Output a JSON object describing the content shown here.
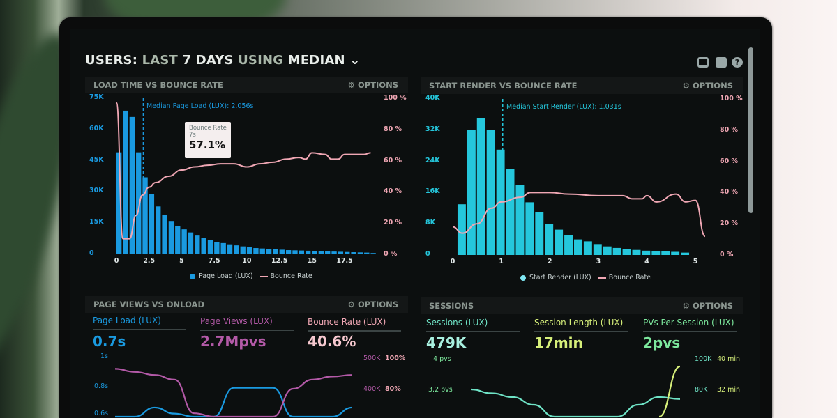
{
  "header": {
    "title_parts": [
      "USERS:",
      "LAST",
      "7 DAYS",
      "USING",
      "MEDIAN"
    ],
    "icons": [
      "monitor-icon",
      "share-icon",
      "help-icon"
    ]
  },
  "colors": {
    "page_load": "#1a9ae0",
    "start_render": "#25c7dc",
    "bounce": "#f0a7b4",
    "page_views": "#b45aa8",
    "sessions": "#6fe3c6",
    "session_length": "#d6ef7a",
    "pvs_per_session": "#7de89d"
  },
  "panels": {
    "load_time": {
      "title": "LOAD TIME VS BOUNCE RATE",
      "options": "OPTIONS",
      "median_label": "Median Page Load (LUX): 2.056s",
      "tooltip": {
        "label": "Bounce Rate",
        "sub": "7s",
        "value": "57.1%"
      },
      "legend": [
        "Page Load (LUX)",
        "Bounce Rate"
      ]
    },
    "start_render": {
      "title": "START RENDER VS BOUNCE RATE",
      "options": "OPTIONS",
      "median_label": "Median Start Render (LUX): 1.031s",
      "legend": [
        "Start Render (LUX)",
        "Bounce Rate"
      ]
    },
    "page_views": {
      "title": "PAGE VIEWS VS ONLOAD",
      "options": "OPTIONS",
      "kpis": [
        {
          "label": "Page Load (LUX)",
          "value": "0.7s"
        },
        {
          "label": "Page Views (LUX)",
          "value": "2.7Mpvs"
        },
        {
          "label": "Bounce Rate (LUX)",
          "value": "40.6%"
        }
      ],
      "left_ticks": [
        "1s",
        "0.8s",
        "0.6s"
      ],
      "right_ticks_a": [
        "500K",
        "400K"
      ],
      "right_ticks_b": [
        "100%",
        "80%"
      ]
    },
    "sessions": {
      "title": "SESSIONS",
      "options": "OPTIONS",
      "kpis": [
        {
          "label": "Sessions (LUX)",
          "value": "479K"
        },
        {
          "label": "Session Length (LUX)",
          "value": "17min"
        },
        {
          "label": "PVs Per Session (LUX)",
          "value": "2pvs"
        }
      ],
      "left_ticks": [
        "4 pvs",
        "3.2 pvs"
      ],
      "right_ticks_a": [
        "100K",
        "80K"
      ],
      "right_ticks_b": [
        "40 min",
        "32 min"
      ]
    }
  },
  "chart_data": [
    {
      "type": "bar",
      "title": "LOAD TIME VS BOUNCE RATE",
      "x_ticks": [
        "0",
        "2.5",
        "5",
        "7.5",
        "10",
        "12.5",
        "15",
        "17.5"
      ],
      "xlim": [
        0,
        19.5
      ],
      "y_ticks": [
        "0",
        "15K",
        "30K",
        "45K",
        "60K",
        "75K"
      ],
      "ylim": [
        0,
        75000
      ],
      "y2_ticks": [
        "0 %",
        "20 %",
        "40 %",
        "60 %",
        "80 %",
        "100 %"
      ],
      "y2lim": [
        0,
        100
      ],
      "median": 2.056,
      "series": [
        {
          "name": "Page Load (LUX)",
          "type": "bar",
          "bin_width": 0.5,
          "values": [
            49000,
            69000,
            66000,
            49000,
            37000,
            29000,
            23000,
            19000,
            16000,
            13500,
            12000,
            10500,
            9000,
            8000,
            7000,
            6000,
            5400,
            4800,
            4300,
            3800,
            3400,
            3000,
            2800,
            2600,
            2400,
            2200,
            2000,
            1900,
            1800,
            1700,
            1600,
            1500,
            1400,
            1300,
            1200,
            1100,
            1000,
            900,
            800,
            600
          ]
        },
        {
          "name": "Bounce Rate",
          "type": "line",
          "x": [
            0,
            0.5,
            1,
            1.5,
            2,
            2.5,
            3,
            4,
            5,
            6,
            7,
            8,
            9,
            10,
            11,
            12,
            13,
            14,
            14.5,
            15,
            16,
            16.5,
            17,
            17.5,
            18,
            19,
            19.5
          ],
          "values": [
            97,
            10,
            10,
            25,
            38,
            43,
            46,
            50,
            54,
            56,
            57.1,
            58,
            58,
            56,
            58,
            59,
            61,
            62,
            61,
            65,
            64,
            61,
            61,
            64,
            64,
            64,
            65
          ]
        }
      ]
    },
    {
      "type": "bar",
      "title": "START RENDER VS BOUNCE RATE",
      "x_ticks": [
        "0",
        "1",
        "2",
        "3",
        "4",
        "5"
      ],
      "xlim": [
        0,
        5.2
      ],
      "y_ticks": [
        "0",
        "8K",
        "16K",
        "24K",
        "32K",
        "40K"
      ],
      "ylim": [
        0,
        40000
      ],
      "y2_ticks": [
        "0 %",
        "20 %",
        "40 %",
        "60 %",
        "80 %",
        "100 %"
      ],
      "y2lim": [
        0,
        100
      ],
      "median": 1.031,
      "series": [
        {
          "name": "Start Render (LUX)",
          "type": "bar",
          "bin_width": 0.2,
          "values": [
            13000,
            32000,
            35000,
            32000,
            27000,
            22000,
            18000,
            13500,
            11000,
            8000,
            6500,
            5000,
            4000,
            3500,
            2800,
            2200,
            1800,
            1500,
            1300,
            1100,
            1000,
            900,
            800,
            600
          ]
        },
        {
          "name": "Bounce Rate",
          "type": "line",
          "x": [
            0,
            0.2,
            0.5,
            0.8,
            1,
            1.4,
            1.6,
            2,
            2.4,
            3,
            3.5,
            3.7,
            3.9,
            4,
            4.2,
            4.6,
            4.8,
            5,
            5.2
          ],
          "values": [
            18,
            14,
            20,
            30,
            34,
            37,
            40,
            40,
            39,
            38,
            38,
            36,
            36,
            38,
            34,
            39,
            34,
            35,
            12
          ]
        }
      ]
    },
    {
      "type": "line",
      "title": "PAGE VIEWS VS ONLOAD",
      "series": [
        {
          "name": "Page Load (LUX)",
          "axis": "s",
          "values": [
            0.5,
            0.57,
            0.66,
            0.62,
            0.5,
            0.6,
            0.79,
            0.79,
            0.79,
            0.5,
            0.42,
            0.5,
            0.66
          ]
        },
        {
          "name": "Page Views (LUX)",
          "axis": "K",
          "values": [
            465,
            455,
            445,
            430,
            320,
            180,
            100,
            100,
            180,
            400,
            430,
            440,
            445
          ]
        }
      ]
    },
    {
      "type": "line",
      "title": "SESSIONS",
      "series": [
        {
          "name": "PVs Per Session (LUX)",
          "axis": "pvs",
          "values": [
            3.2,
            3.1,
            3.0,
            2.8,
            2.3,
            2.0,
            2.2,
            2.4,
            2.8,
            3.0,
            2.95
          ]
        },
        {
          "name": "Session Length (LUX)",
          "axis": "min",
          "values": [
            null,
            null,
            null,
            null,
            null,
            null,
            null,
            null,
            null,
            17,
            38
          ]
        }
      ]
    }
  ]
}
